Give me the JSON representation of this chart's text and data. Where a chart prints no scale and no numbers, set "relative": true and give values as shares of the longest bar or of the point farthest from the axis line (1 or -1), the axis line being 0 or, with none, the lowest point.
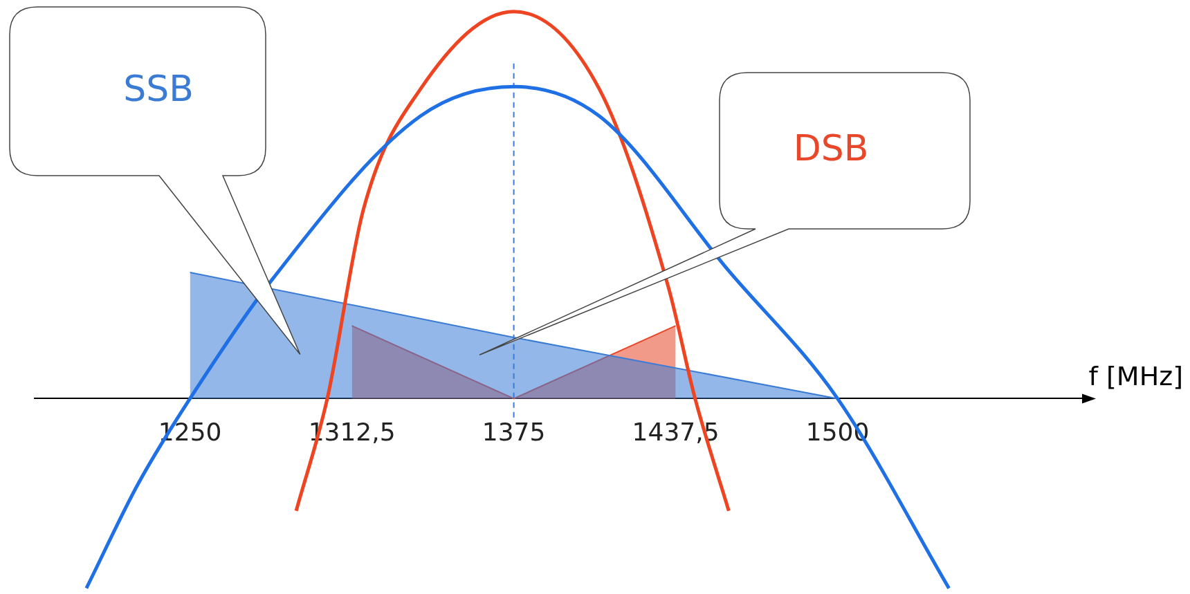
{
  "chart_data": {
    "type": "line",
    "relative": true,
    "grid": false,
    "legend": false,
    "marker": "none",
    "xlabel": "f [MHz]",
    "xlim": [
      1190,
      1596
    ],
    "xticks": [
      1250,
      {
        "value": 1312.5,
        "label": "1312,5"
      },
      1375,
      {
        "value": 1437.5,
        "label": "1437,5"
      },
      1500
    ],
    "ref_lines": [
      {
        "axis": "x",
        "value": 1375,
        "color": "#3a7bd5",
        "line_style": "dashed"
      }
    ],
    "series": [
      {
        "name": "SSB",
        "type": "area",
        "color": "#3a7bd5",
        "x": [
          1250,
          1375,
          1500
        ],
        "values": [
          0.326,
          0.158,
          0
        ]
      },
      {
        "name": "DSB",
        "type": "area",
        "color": "#e8472a",
        "x": [
          1312.5,
          1375,
          1437.5
        ],
        "values": [
          0.188,
          0,
          0.188
        ]
      },
      {
        "type": "line",
        "color": "#1f6fe5",
        "x": [
          1210,
          1230,
          1250,
          1282,
          1339,
          1375,
          1408,
          1458,
          1500,
          1543
        ],
        "values": [
          -0.49,
          -0.22,
          0,
          0.31,
          0.73,
          0.806,
          0.73,
          0.33,
          0,
          -0.49
        ]
      },
      {
        "type": "line",
        "color": "#ee4422",
        "x": [
          1291,
          1303,
          1317,
          1339,
          1375,
          1408,
          1434.6,
          1445,
          1458
        ],
        "values": [
          -0.29,
          0,
          0.49,
          0.8,
          1,
          0.8,
          0.29,
          0,
          -0.29
        ]
      }
    ]
  }
}
